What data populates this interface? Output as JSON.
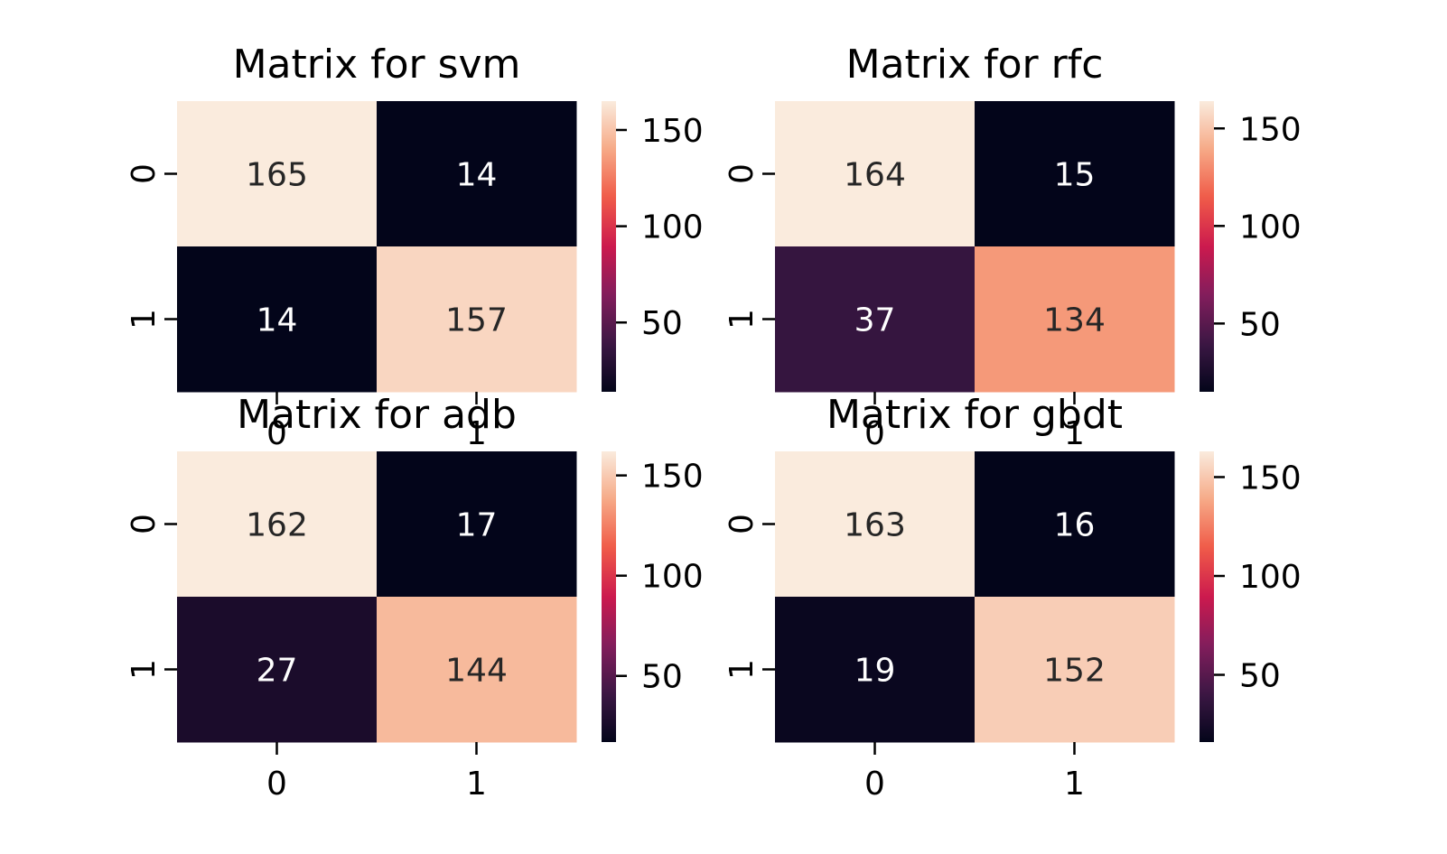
{
  "colormap": [
    "#03051a",
    "#3c1744",
    "#831d5c",
    "#cc1a4e",
    "#f05a48",
    "#f6a986",
    "#faebdd"
  ],
  "chart_data": [
    {
      "type": "heatmap",
      "title": "Matrix for svm",
      "row_labels": [
        "0",
        "1"
      ],
      "col_labels": [
        "0",
        "1"
      ],
      "values": [
        [
          165,
          14
        ],
        [
          14,
          157
        ]
      ],
      "vmin": 14,
      "vmax": 165,
      "colorbar_ticks": [
        50,
        100,
        150
      ]
    },
    {
      "type": "heatmap",
      "title": "Matrix for rfc",
      "row_labels": [
        "0",
        "1"
      ],
      "col_labels": [
        "0",
        "1"
      ],
      "values": [
        [
          164,
          15
        ],
        [
          37,
          134
        ]
      ],
      "vmin": 15,
      "vmax": 164,
      "colorbar_ticks": [
        50,
        100,
        150
      ]
    },
    {
      "type": "heatmap",
      "title": "Matrix for adb",
      "row_labels": [
        "0",
        "1"
      ],
      "col_labels": [
        "0",
        "1"
      ],
      "values": [
        [
          162,
          17
        ],
        [
          27,
          144
        ]
      ],
      "vmin": 17,
      "vmax": 162,
      "colorbar_ticks": [
        50,
        100,
        150
      ]
    },
    {
      "type": "heatmap",
      "title": "Matrix for gbdt",
      "row_labels": [
        "0",
        "1"
      ],
      "col_labels": [
        "0",
        "1"
      ],
      "values": [
        [
          163,
          16
        ],
        [
          19,
          152
        ]
      ],
      "vmin": 16,
      "vmax": 163,
      "colorbar_ticks": [
        50,
        100,
        150
      ]
    }
  ]
}
